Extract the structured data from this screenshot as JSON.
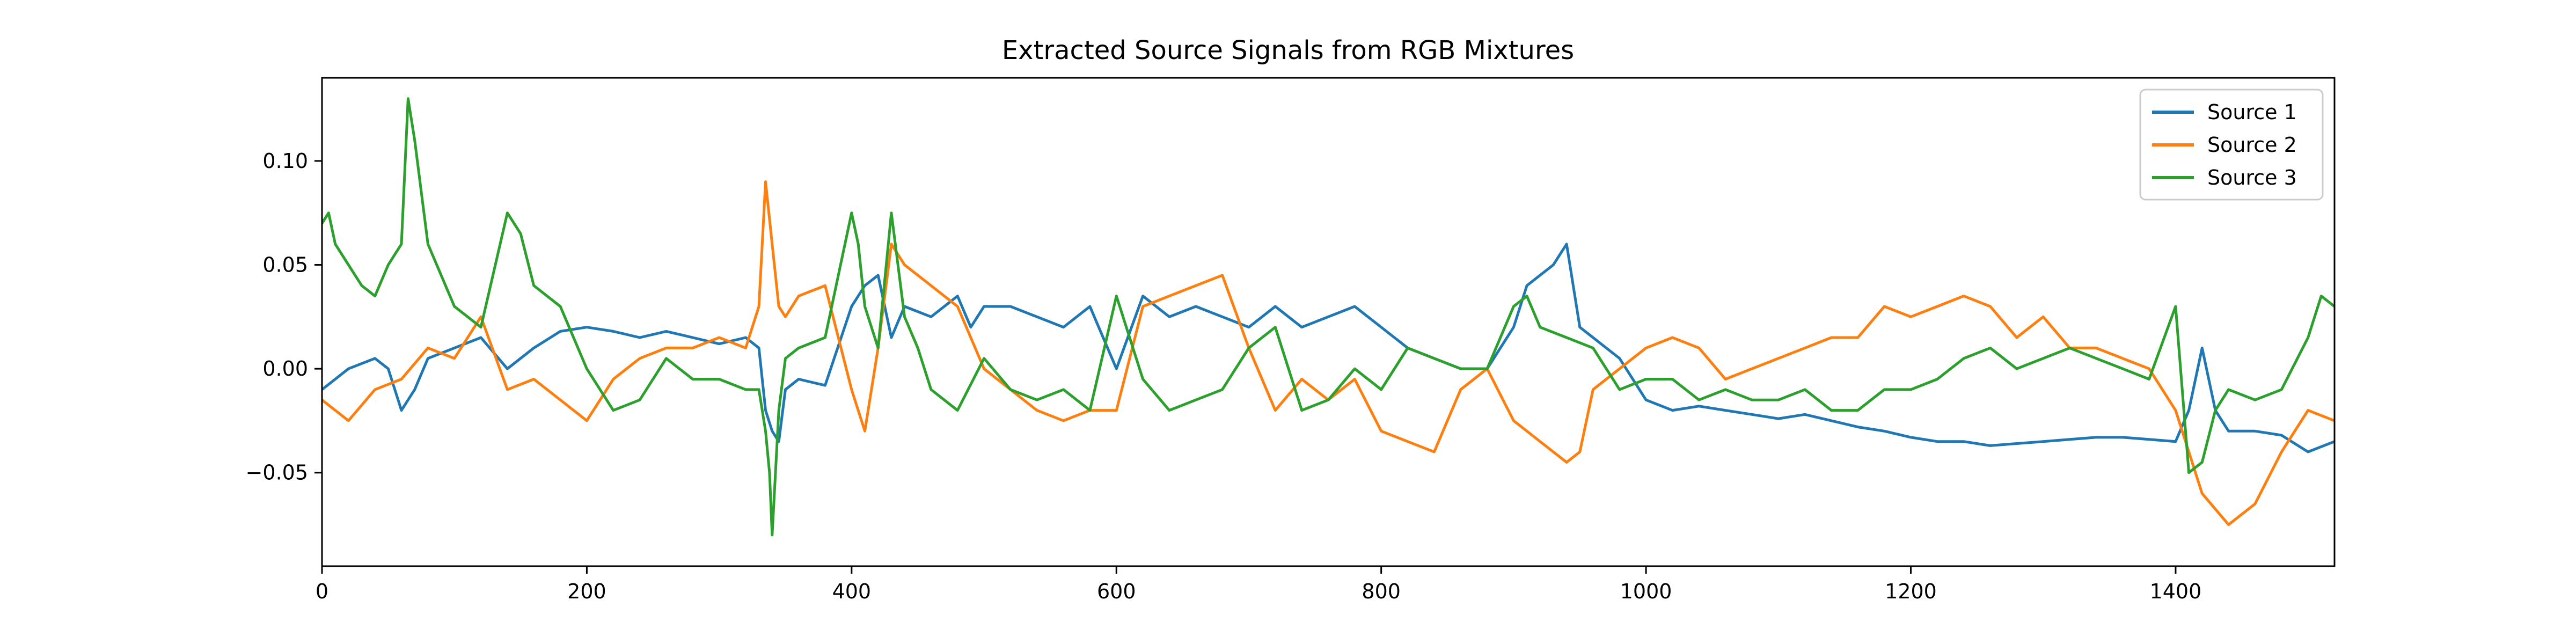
{
  "chart_data": {
    "type": "line",
    "title": "Extracted Source Signals from RGB Mixtures",
    "xlabel": "",
    "ylabel": "",
    "xlim": [
      0,
      1520
    ],
    "ylim": [
      -0.095,
      0.14
    ],
    "xticks": [
      0,
      200,
      400,
      600,
      800,
      1000,
      1200,
      1400
    ],
    "xtick_labels": [
      "0",
      "200",
      "400",
      "600",
      "800",
      "1000",
      "1200",
      "1400"
    ],
    "yticks": [
      -0.05,
      0.0,
      0.05,
      0.1
    ],
    "ytick_labels": [
      "−0.05",
      "0.00",
      "0.05",
      "0.10"
    ],
    "grid": false,
    "legend_position": "top-right",
    "series": [
      {
        "name": "Source 1",
        "color": "#1f77b4",
        "x": [
          0,
          20,
          40,
          50,
          60,
          70,
          80,
          100,
          120,
          140,
          160,
          180,
          200,
          220,
          240,
          260,
          280,
          300,
          320,
          330,
          335,
          340,
          345,
          350,
          360,
          380,
          400,
          410,
          420,
          430,
          440,
          460,
          480,
          490,
          500,
          520,
          540,
          560,
          580,
          600,
          620,
          640,
          660,
          680,
          700,
          720,
          740,
          760,
          780,
          800,
          820,
          840,
          860,
          880,
          900,
          910,
          920,
          930,
          940,
          950,
          960,
          980,
          1000,
          1020,
          1040,
          1060,
          1080,
          1100,
          1120,
          1140,
          1160,
          1180,
          1200,
          1220,
          1240,
          1260,
          1280,
          1300,
          1320,
          1340,
          1360,
          1380,
          1400,
          1410,
          1420,
          1430,
          1440,
          1460,
          1480,
          1500,
          1520
        ],
        "y": [
          -0.01,
          0.0,
          0.005,
          0.0,
          -0.02,
          -0.01,
          0.005,
          0.01,
          0.015,
          0.0,
          0.01,
          0.018,
          0.02,
          0.018,
          0.015,
          0.018,
          0.015,
          0.012,
          0.015,
          0.01,
          -0.02,
          -0.03,
          -0.035,
          -0.01,
          -0.005,
          -0.008,
          0.03,
          0.04,
          0.045,
          0.015,
          0.03,
          0.025,
          0.035,
          0.02,
          0.03,
          0.03,
          0.025,
          0.02,
          0.03,
          0.0,
          0.035,
          0.025,
          0.03,
          0.025,
          0.02,
          0.03,
          0.02,
          0.025,
          0.03,
          0.02,
          0.01,
          0.005,
          0.0,
          0.0,
          0.02,
          0.04,
          0.045,
          0.05,
          0.06,
          0.02,
          0.015,
          0.005,
          -0.015,
          -0.02,
          -0.018,
          -0.02,
          -0.022,
          -0.024,
          -0.022,
          -0.025,
          -0.028,
          -0.03,
          -0.033,
          -0.035,
          -0.035,
          -0.037,
          -0.036,
          -0.035,
          -0.034,
          -0.033,
          -0.033,
          -0.034,
          -0.035,
          -0.02,
          0.01,
          -0.02,
          -0.03,
          -0.03,
          -0.032,
          -0.04,
          -0.035
        ]
      },
      {
        "name": "Source 2",
        "color": "#ff7f0e",
        "x": [
          0,
          20,
          40,
          60,
          80,
          100,
          120,
          140,
          160,
          180,
          200,
          220,
          240,
          260,
          280,
          300,
          320,
          330,
          335,
          340,
          345,
          350,
          360,
          380,
          400,
          410,
          420,
          430,
          440,
          460,
          480,
          500,
          520,
          540,
          560,
          580,
          600,
          620,
          640,
          660,
          680,
          700,
          720,
          740,
          760,
          780,
          800,
          820,
          840,
          860,
          880,
          900,
          910,
          920,
          940,
          950,
          960,
          980,
          1000,
          1020,
          1040,
          1060,
          1080,
          1100,
          1120,
          1140,
          1160,
          1180,
          1200,
          1220,
          1240,
          1260,
          1280,
          1300,
          1320,
          1340,
          1360,
          1380,
          1400,
          1420,
          1440,
          1460,
          1480,
          1500,
          1520
        ],
        "y": [
          -0.015,
          -0.025,
          -0.01,
          -0.005,
          0.01,
          0.005,
          0.025,
          -0.01,
          -0.005,
          -0.015,
          -0.025,
          -0.005,
          0.005,
          0.01,
          0.01,
          0.015,
          0.01,
          0.03,
          0.09,
          0.06,
          0.03,
          0.025,
          0.035,
          0.04,
          -0.01,
          -0.03,
          0.01,
          0.06,
          0.05,
          0.04,
          0.03,
          0.0,
          -0.01,
          -0.02,
          -0.025,
          -0.02,
          -0.02,
          0.03,
          0.035,
          0.04,
          0.045,
          0.01,
          -0.02,
          -0.005,
          -0.015,
          -0.005,
          -0.03,
          -0.035,
          -0.04,
          -0.01,
          0.0,
          -0.025,
          -0.03,
          -0.035,
          -0.045,
          -0.04,
          -0.01,
          0.0,
          0.01,
          0.015,
          0.01,
          -0.005,
          0.0,
          0.005,
          0.01,
          0.015,
          0.015,
          0.03,
          0.025,
          0.03,
          0.035,
          0.03,
          0.015,
          0.025,
          0.01,
          0.01,
          0.005,
          0.0,
          -0.02,
          -0.06,
          -0.075,
          -0.065,
          -0.04,
          -0.02,
          -0.025
        ]
      },
      {
        "name": "Source 3",
        "color": "#2ca02c",
        "x": [
          0,
          5,
          10,
          20,
          30,
          40,
          50,
          60,
          65,
          70,
          80,
          100,
          120,
          140,
          150,
          160,
          180,
          200,
          220,
          240,
          260,
          280,
          300,
          320,
          330,
          335,
          338,
          340,
          345,
          350,
          360,
          380,
          400,
          405,
          410,
          420,
          430,
          440,
          450,
          460,
          480,
          500,
          520,
          540,
          560,
          580,
          600,
          620,
          640,
          660,
          680,
          700,
          720,
          740,
          760,
          780,
          800,
          820,
          840,
          860,
          880,
          900,
          910,
          920,
          940,
          960,
          980,
          1000,
          1020,
          1040,
          1060,
          1080,
          1100,
          1120,
          1140,
          1160,
          1180,
          1200,
          1220,
          1240,
          1260,
          1280,
          1300,
          1320,
          1340,
          1360,
          1380,
          1400,
          1410,
          1420,
          1430,
          1440,
          1460,
          1480,
          1500,
          1510,
          1520
        ],
        "y": [
          0.07,
          0.075,
          0.06,
          0.05,
          0.04,
          0.035,
          0.05,
          0.06,
          0.13,
          0.11,
          0.06,
          0.03,
          0.02,
          0.075,
          0.065,
          0.04,
          0.03,
          0.0,
          -0.02,
          -0.015,
          0.005,
          -0.005,
          -0.005,
          -0.01,
          -0.01,
          -0.03,
          -0.05,
          -0.08,
          -0.02,
          0.005,
          0.01,
          0.015,
          0.075,
          0.06,
          0.03,
          0.01,
          0.075,
          0.025,
          0.01,
          -0.01,
          -0.02,
          0.005,
          -0.01,
          -0.015,
          -0.01,
          -0.02,
          0.035,
          -0.005,
          -0.02,
          -0.015,
          -0.01,
          0.01,
          0.02,
          -0.02,
          -0.015,
          0.0,
          -0.01,
          0.01,
          0.005,
          0.0,
          0.0,
          0.03,
          0.035,
          0.02,
          0.015,
          0.01,
          -0.01,
          -0.005,
          -0.005,
          -0.015,
          -0.01,
          -0.015,
          -0.015,
          -0.01,
          -0.02,
          -0.02,
          -0.01,
          -0.01,
          -0.005,
          0.005,
          0.01,
          0.0,
          0.005,
          0.01,
          0.005,
          0.0,
          -0.005,
          0.03,
          -0.05,
          -0.045,
          -0.02,
          -0.01,
          -0.015,
          -0.01,
          0.015,
          0.035,
          0.03
        ]
      }
    ]
  }
}
